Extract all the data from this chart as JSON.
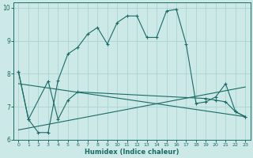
{
  "xlabel": "Humidex (Indice chaleur)",
  "bg_color": "#cce9e8",
  "grid_color": "#aad4d3",
  "line_color": "#1a6b65",
  "xlim": [
    -0.5,
    23.5
  ],
  "ylim": [
    6,
    10.15
  ],
  "yticks": [
    6,
    7,
    8,
    9,
    10
  ],
  "xticks": [
    0,
    1,
    2,
    3,
    4,
    5,
    6,
    7,
    8,
    9,
    10,
    11,
    12,
    13,
    14,
    15,
    16,
    17,
    18,
    19,
    20,
    21,
    22,
    23
  ],
  "line1_x": [
    0,
    1,
    2,
    3,
    4,
    5,
    6,
    7,
    8,
    9,
    10,
    11,
    12,
    13,
    14,
    15,
    16,
    17,
    18,
    19,
    20,
    21,
    22,
    23
  ],
  "line1_y": [
    8.05,
    6.62,
    6.22,
    6.22,
    7.8,
    8.6,
    8.8,
    9.2,
    9.4,
    8.9,
    9.55,
    9.75,
    9.75,
    9.1,
    9.1,
    9.9,
    9.95,
    8.9,
    7.1,
    7.15,
    7.3,
    7.7,
    6.85,
    6.7
  ],
  "line2_x": [
    0,
    1,
    3,
    4,
    5,
    6,
    19,
    20,
    21,
    22,
    23
  ],
  "line2_y": [
    8.05,
    6.62,
    7.78,
    6.62,
    7.2,
    7.45,
    7.25,
    7.2,
    7.15,
    6.85,
    6.7
  ],
  "line3_x": [
    0,
    23
  ],
  "line3_y": [
    6.3,
    7.6
  ],
  "line4_x": [
    0,
    23
  ],
  "line4_y": [
    7.7,
    6.7
  ]
}
